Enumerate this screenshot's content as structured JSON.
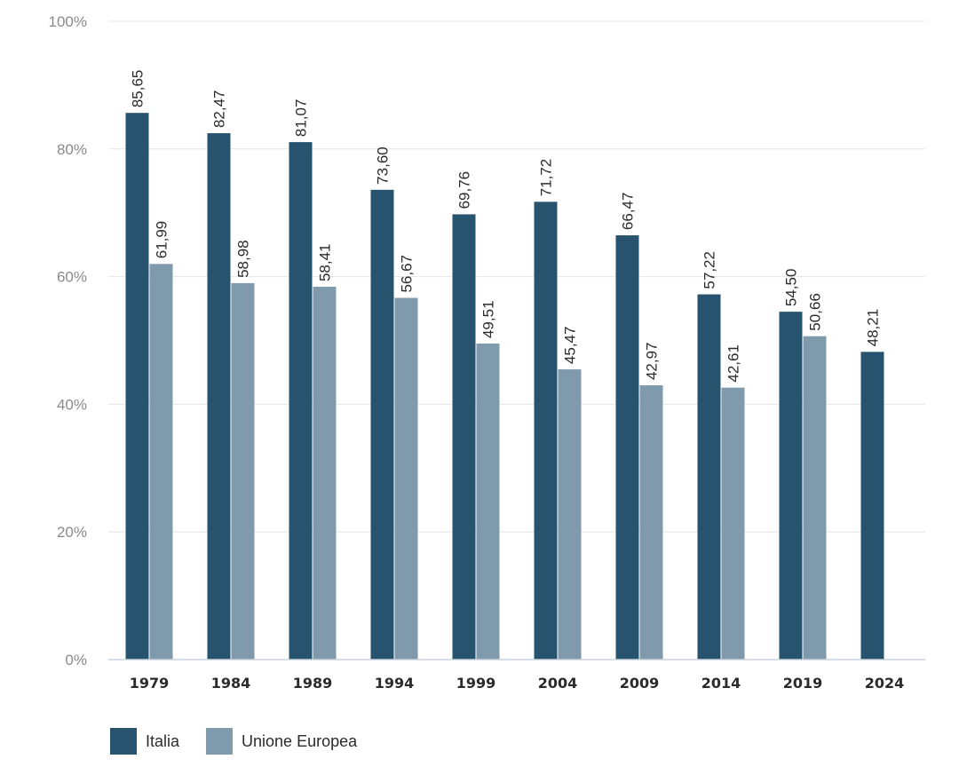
{
  "chart_data": {
    "type": "bar",
    "categories": [
      "1979",
      "1984",
      "1989",
      "1994",
      "1999",
      "2004",
      "2009",
      "2014",
      "2019",
      "2024"
    ],
    "series": [
      {
        "name": "Italia",
        "color": "#27536f",
        "values": [
          85.65,
          82.47,
          81.07,
          73.6,
          69.76,
          71.72,
          66.47,
          57.22,
          54.5,
          48.21
        ],
        "labels": [
          "85,65",
          "82,47",
          "81,07",
          "73,60",
          "69,76",
          "71,72",
          "66,47",
          "57,22",
          "54,50",
          "48,21"
        ]
      },
      {
        "name": "Unione Europea",
        "color": "#7f9aad",
        "values": [
          61.99,
          58.98,
          58.41,
          56.67,
          49.51,
          45.47,
          42.97,
          42.61,
          50.66,
          null
        ],
        "labels": [
          "61,99",
          "58,98",
          "58,41",
          "56,67",
          "49,51",
          "45,47",
          "42,97",
          "42,61",
          "50,66",
          null
        ]
      }
    ],
    "ylim": [
      0,
      100
    ],
    "yticks": [
      0,
      20,
      40,
      60,
      80,
      100
    ],
    "ytick_labels": [
      "0%",
      "20%",
      "40%",
      "60%",
      "80%",
      "100%"
    ],
    "grid": true,
    "legend_position": "bottom-left"
  }
}
